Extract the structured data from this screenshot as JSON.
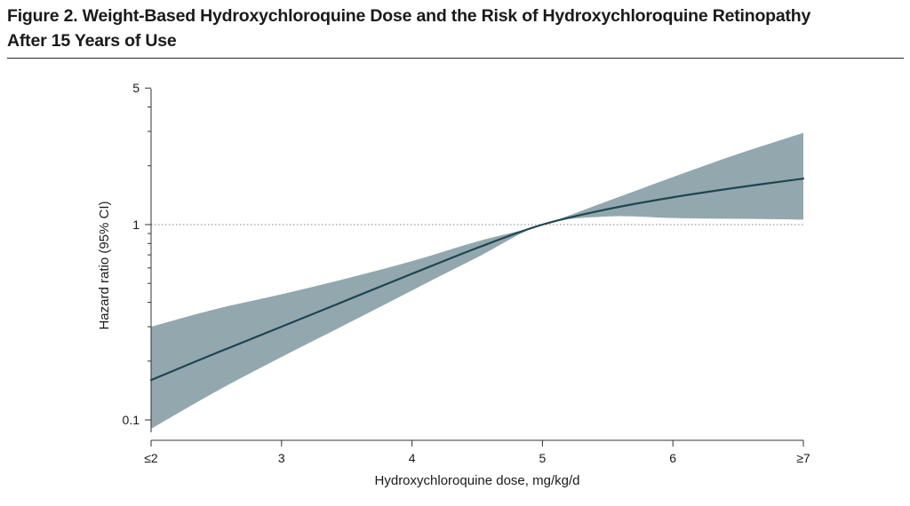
{
  "figure": {
    "title_line1": "Figure 2. Weight-Based Hydroxychloroquine Dose and the Risk of Hydroxychloroquine Retinopathy",
    "title_line2": "After 15 Years of Use"
  },
  "chart_data": {
    "type": "line",
    "title": "Figure 2. Weight-Based Hydroxychloroquine Dose and the Risk of Hydroxychloroquine Retinopathy After 15 Years of Use",
    "xlabel": "Hydroxychloroquine dose, mg/kg/d",
    "ylabel": "Hazard ratio (95% CI)",
    "xlim": [
      2,
      7
    ],
    "ylim": [
      0.085,
      5
    ],
    "yscale": "log",
    "grid": false,
    "x_ticks": [
      2,
      3,
      4,
      5,
      6,
      7
    ],
    "x_tick_labels": [
      "≤2",
      "3",
      "4",
      "5",
      "6",
      "≥7"
    ],
    "y_ticks_labeled": [
      0.1,
      1,
      5
    ],
    "y_tick_labels": [
      "0.1",
      "1",
      "5"
    ],
    "y_ticks_minor": [
      0.2,
      0.3,
      0.4,
      0.5,
      0.6,
      0.7,
      0.8,
      0.9,
      2,
      3,
      4
    ],
    "reference_line": {
      "y": 1,
      "style": "dotted"
    },
    "colors": {
      "line": "#1f4552",
      "band": "#92a8ae",
      "reference": "#9a9a9a"
    },
    "series": [
      {
        "x": [
          2.0,
          2.5,
          3.0,
          3.5,
          4.0,
          4.5,
          5.0,
          5.5,
          6.0,
          6.5,
          7.0
        ],
        "y": [
          0.16,
          0.22,
          0.3,
          0.41,
          0.56,
          0.76,
          1.0,
          1.2,
          1.38,
          1.55,
          1.72
        ],
        "lower": [
          0.09,
          0.14,
          0.21,
          0.31,
          0.46,
          0.68,
          1.0,
          1.1,
          1.08,
          1.07,
          1.06
        ],
        "upper": [
          0.3,
          0.37,
          0.44,
          0.53,
          0.65,
          0.82,
          1.0,
          1.32,
          1.75,
          2.3,
          2.95
        ]
      }
    ]
  }
}
